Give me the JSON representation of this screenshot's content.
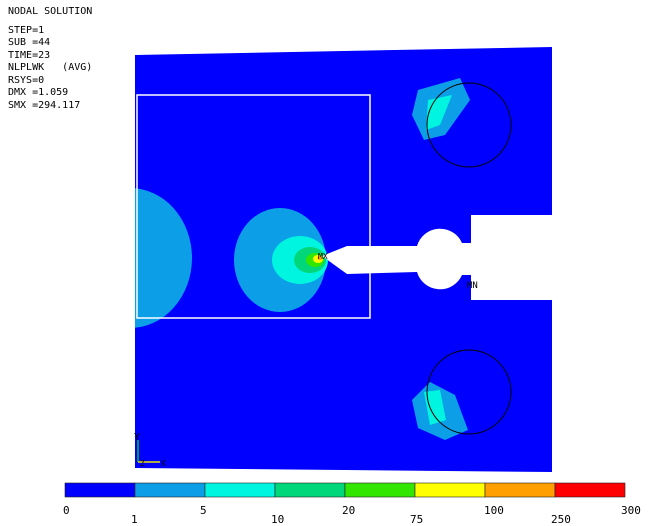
{
  "info": {
    "title": "NODAL SOLUTION",
    "lines": [
      "STEP=1",
      "SUB =44",
      "TIME=23",
      "NLPLWK   (AVG)",
      "RSYS=0",
      "DMX =1.059",
      "SMX =294.117"
    ]
  },
  "markers": {
    "mx": "MX",
    "mn": "MN",
    "axis_y": "Y",
    "axis_z": "Z",
    "axis_x": "X"
  },
  "legend": {
    "colors": [
      "#0000ff",
      "#0d9ee8",
      "#00f5e0",
      "#00d67a",
      "#33e600",
      "#ffff00",
      "#ff9f00",
      "#ff0000"
    ],
    "ticks_bottom": [
      "0",
      "5",
      "20",
      "100",
      "300"
    ],
    "ticks_lower": [
      "1",
      "10",
      "75",
      "250"
    ]
  }
}
